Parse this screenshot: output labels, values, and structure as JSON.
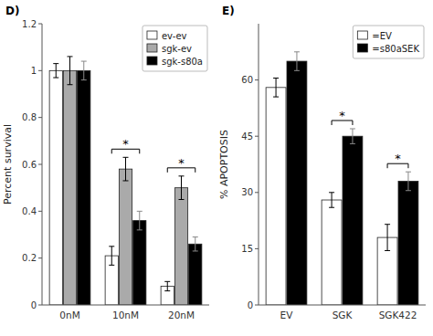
{
  "chart_data": [
    {
      "type": "bar",
      "title": "D)",
      "categories": [
        "0nM",
        "10nM",
        "20nM"
      ],
      "series": [
        {
          "name": "ev-ev",
          "color": "white",
          "values": [
            1.0,
            0.21,
            0.08
          ],
          "errors": [
            0.03,
            0.04,
            0.02
          ]
        },
        {
          "name": "sgk-ev",
          "color": "#aaaaaa",
          "values": [
            1.0,
            0.58,
            0.5
          ],
          "errors": [
            0.06,
            0.05,
            0.05
          ]
        },
        {
          "name": "sgk-s80a",
          "color": "black",
          "values": [
            1.0,
            0.36,
            0.26
          ],
          "errors": [
            0.04,
            0.04,
            0.03
          ]
        }
      ],
      "ylabel": "Percent survival",
      "ylim": [
        0,
        1.2
      ],
      "yticks": [
        0,
        0.2,
        0.4,
        0.6,
        0.8,
        1,
        1.2
      ],
      "legend": "upper right",
      "annotations": [
        {
          "text": "*",
          "x": "10nM"
        },
        {
          "text": "*",
          "x": "20nM"
        }
      ]
    },
    {
      "type": "bar",
      "title": "E)",
      "categories": [
        "EV",
        "SGK",
        "SGK422"
      ],
      "series": [
        {
          "name": "=EV",
          "color": "white",
          "values": [
            58,
            28,
            18
          ],
          "errors": [
            2.5,
            2.0,
            3.5
          ]
        },
        {
          "name": "=s80aSEK",
          "color": "black",
          "values": [
            65,
            45,
            33
          ],
          "errors": [
            2.5,
            2.0,
            2.5
          ]
        }
      ],
      "ylabel": "% APOPTOSIS",
      "ylim": [
        0,
        75
      ],
      "yticks": [
        0,
        15,
        30,
        45,
        60
      ],
      "legend": "upper right",
      "annotations": [
        {
          "text": "*",
          "x": "SGK"
        },
        {
          "text": "*",
          "x": "SGK422"
        }
      ]
    }
  ]
}
